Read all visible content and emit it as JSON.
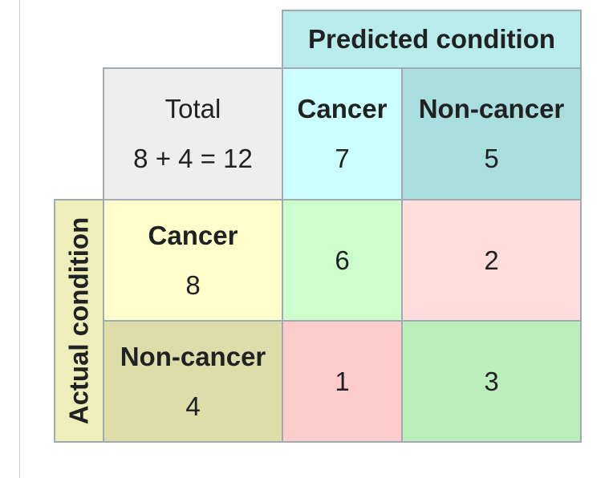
{
  "header": {
    "predicted_condition": "Predicted condition",
    "actual_condition": "Actual condition"
  },
  "total": {
    "label": "Total",
    "value": "8 + 4 = 12"
  },
  "predicted": {
    "cancer_label": "Cancer",
    "cancer_value": "7",
    "noncancer_label": "Non-cancer",
    "noncancer_value": "5"
  },
  "actual": {
    "cancer_label": "Cancer",
    "cancer_value": "8",
    "noncancer_label": "Non-cancer",
    "noncancer_value": "4"
  },
  "matrix": {
    "true_positive": "6",
    "false_negative": "2",
    "false_positive": "1",
    "true_negative": "3"
  },
  "colors": {
    "predicted_header": "#b8ecea",
    "predicted_cancer": "#ccffff",
    "predicted_noncancer": "#aadddd",
    "actual_header": "#eeeebb",
    "actual_cancer": "#ffffcc",
    "actual_noncancer": "#dddda9",
    "total": "#eeeeee",
    "true_positive": "#ccffcc",
    "false_negative": "#ffdddd",
    "false_positive": "#ffcccc",
    "true_negative": "#bbeebb"
  }
}
